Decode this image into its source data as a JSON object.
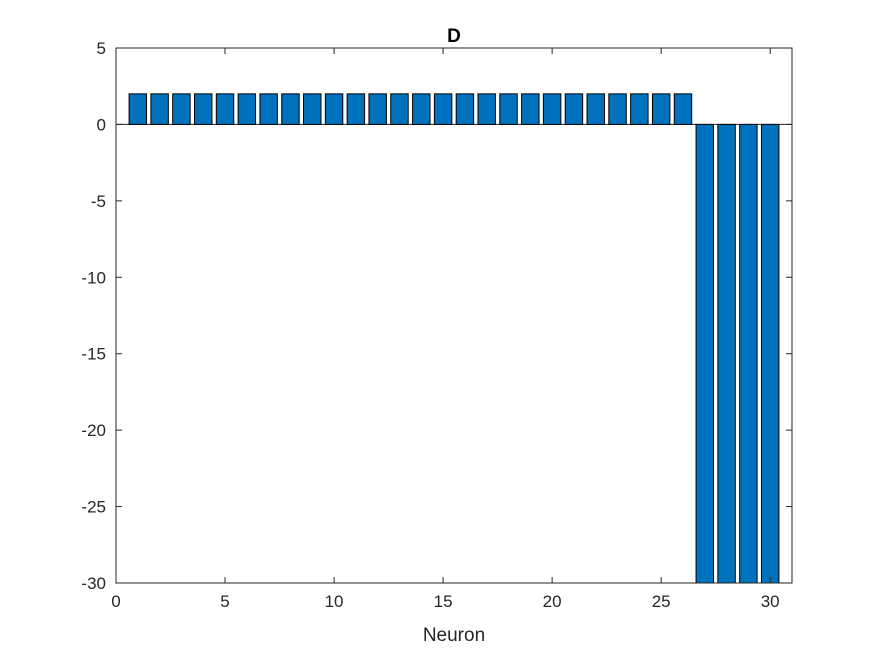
{
  "chart_data": {
    "type": "bar",
    "title": "D",
    "xlabel": "Neuron",
    "ylabel": "",
    "x": [
      1,
      2,
      3,
      4,
      5,
      6,
      7,
      8,
      9,
      10,
      11,
      12,
      13,
      14,
      15,
      16,
      17,
      18,
      19,
      20,
      21,
      22,
      23,
      24,
      25,
      26,
      27,
      28,
      29,
      30
    ],
    "values": [
      2,
      2,
      2,
      2,
      2,
      2,
      2,
      2,
      2,
      2,
      2,
      2,
      2,
      2,
      2,
      2,
      2,
      2,
      2,
      2,
      2,
      2,
      2,
      2,
      2,
      2,
      -30,
      -30,
      -30,
      -30
    ],
    "xlim": [
      0,
      31
    ],
    "ylim": [
      -30,
      5
    ],
    "xticks": [
      0,
      5,
      10,
      15,
      20,
      25,
      30
    ],
    "yticks": [
      5,
      0,
      -5,
      -10,
      -15,
      -20,
      -25,
      -30
    ],
    "grid": false,
    "bar_color": "#0072BD",
    "edge_color": "#000000"
  }
}
